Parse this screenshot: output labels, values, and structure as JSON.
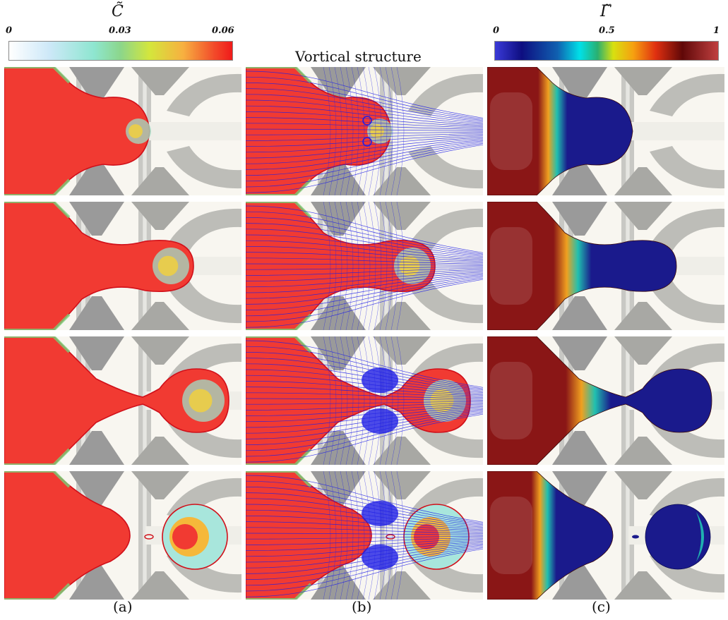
{
  "colorbar_c": {
    "title": "C̃",
    "ticks": [
      "0",
      "0.03",
      "0.06"
    ]
  },
  "colorbar_gamma": {
    "title": "Γ̃",
    "ticks": [
      "0",
      "0.5",
      "1"
    ]
  },
  "heading": "Vortical structure",
  "columns": [
    {
      "label": "(a)"
    },
    {
      "label": "(b)"
    },
    {
      "label": "(c)"
    }
  ],
  "colors": {
    "concentration_high": "#f13a32",
    "interface": "#d0101a",
    "streamline": "#1f1fe6",
    "channel_wall": "#9a9a9a",
    "background": "#f8f6f0",
    "surfactant_high": "#8a1616",
    "surfactant_low": "#1a1a8c"
  }
}
